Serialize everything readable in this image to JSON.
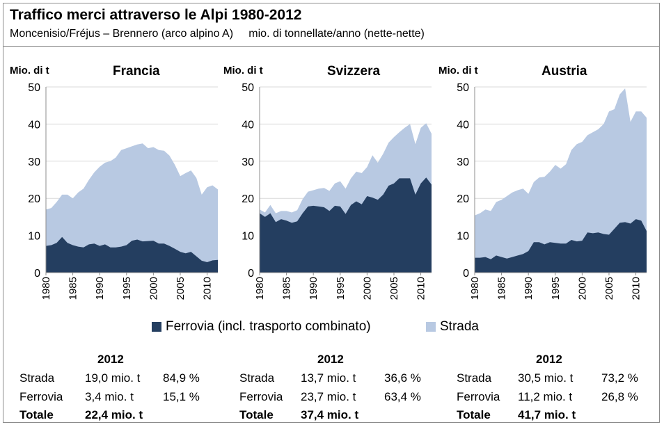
{
  "title": "Traffico merci attraverso le Alpi 1980-2012",
  "subtitle_left": "Moncenisio/Fréjus – Brennero (arco alpino A)",
  "subtitle_right": "mio. di tonnellate/anno (nette-nette)",
  "colors": {
    "ferrovia": "#243e60",
    "strada": "#b8c9e2"
  },
  "legend": {
    "ferrovia": "Ferrovia (incl. trasporto combinato)",
    "strada": "Strada"
  },
  "chart_data": [
    {
      "type": "area",
      "title": "Francia",
      "ylabel": "Mio. di t",
      "ylim": [
        0,
        50
      ],
      "yticks": [
        "0",
        "10",
        "20",
        "30",
        "40",
        "50"
      ],
      "xticks": [
        "1980",
        "1985",
        "1990",
        "1995",
        "2000",
        "2005",
        "2010"
      ],
      "x": [
        1980,
        1981,
        1982,
        1983,
        1984,
        1985,
        1986,
        1987,
        1988,
        1989,
        1990,
        1991,
        1992,
        1993,
        1994,
        1995,
        1996,
        1997,
        1998,
        1999,
        2000,
        2001,
        2002,
        2003,
        2004,
        2005,
        2006,
        2007,
        2008,
        2009,
        2010,
        2011,
        2012
      ],
      "series": [
        {
          "name": "Ferrovia (incl. trasporto combinato)",
          "values": [
            7.2,
            7.4,
            8.0,
            9.6,
            8.0,
            7.4,
            7.0,
            6.8,
            7.6,
            7.8,
            7.2,
            7.6,
            6.8,
            6.8,
            7.0,
            7.4,
            8.6,
            8.9,
            8.4,
            8.5,
            8.6,
            7.8,
            7.8,
            7.2,
            6.4,
            5.6,
            5.2,
            5.6,
            4.4,
            3.2,
            2.8,
            3.3,
            3.4
          ]
        },
        {
          "name": "Strada",
          "values": [
            17.0,
            17.4,
            19.0,
            21.0,
            21.0,
            20.0,
            21.6,
            22.6,
            25.0,
            27.0,
            28.5,
            29.6,
            30.0,
            31.0,
            33.0,
            33.5,
            34.0,
            34.5,
            34.8,
            33.5,
            33.8,
            33.0,
            32.8,
            31.5,
            29.0,
            26.0,
            26.8,
            27.5,
            25.5,
            21.0,
            23.0,
            23.5,
            22.4
          ]
        }
      ]
    },
    {
      "type": "area",
      "title": "Svizzera",
      "ylabel": "Mio. di t",
      "ylim": [
        0,
        50
      ],
      "yticks": [
        "0",
        "10",
        "20",
        "30",
        "40",
        "50"
      ],
      "xticks": [
        "1980",
        "1985",
        "1990",
        "1995",
        "2000",
        "2005",
        "2010"
      ],
      "x": [
        1980,
        1981,
        1982,
        1983,
        1984,
        1985,
        1986,
        1987,
        1988,
        1989,
        1990,
        1991,
        1992,
        1993,
        1994,
        1995,
        1996,
        1997,
        1998,
        1999,
        2000,
        2001,
        2002,
        2003,
        2004,
        2005,
        2006,
        2007,
        2008,
        2009,
        2010,
        2011,
        2012
      ],
      "series": [
        {
          "name": "Ferrovia (incl. trasporto combinato)",
          "values": [
            16.0,
            15.0,
            16.0,
            13.6,
            14.4,
            14.0,
            13.4,
            13.8,
            16.0,
            17.8,
            18.0,
            17.8,
            17.6,
            16.6,
            18.0,
            17.8,
            15.8,
            18.2,
            19.2,
            18.4,
            20.6,
            20.2,
            19.6,
            21.0,
            23.4,
            24.0,
            25.4,
            25.4,
            25.4,
            21.0,
            24.0,
            25.6,
            23.7
          ]
        },
        {
          "name": "Strada",
          "values": [
            17.0,
            16.2,
            18.2,
            16.0,
            16.6,
            16.6,
            16.2,
            16.8,
            19.8,
            21.8,
            22.2,
            22.6,
            22.8,
            22.0,
            24.0,
            24.6,
            22.6,
            25.4,
            27.2,
            26.8,
            28.4,
            31.6,
            29.6,
            32.0,
            35.0,
            36.5,
            37.8,
            39.0,
            40.0,
            34.6,
            39.0,
            40.2,
            37.4
          ]
        }
      ]
    },
    {
      "type": "area",
      "title": "Austria",
      "ylabel": "Mio. di t",
      "ylim": [
        0,
        50
      ],
      "yticks": [
        "0",
        "10",
        "20",
        "30",
        "40",
        "50"
      ],
      "xticks": [
        "1980",
        "1985",
        "1990",
        "1995",
        "2000",
        "2005",
        "2010"
      ],
      "x": [
        1980,
        1981,
        1982,
        1983,
        1984,
        1985,
        1986,
        1987,
        1988,
        1989,
        1990,
        1991,
        1992,
        1993,
        1994,
        1995,
        1996,
        1997,
        1998,
        1999,
        2000,
        2001,
        2002,
        2003,
        2004,
        2005,
        2006,
        2007,
        2008,
        2009,
        2010,
        2011,
        2012
      ],
      "series": [
        {
          "name": "Ferrovia (incl. trasporto combinato)",
          "values": [
            4.0,
            4.0,
            4.2,
            3.6,
            4.6,
            4.2,
            3.8,
            4.2,
            4.6,
            5.0,
            5.8,
            8.2,
            8.2,
            7.6,
            8.2,
            8.0,
            7.8,
            7.8,
            8.8,
            8.4,
            8.6,
            10.8,
            10.6,
            10.8,
            10.4,
            10.2,
            11.8,
            13.4,
            13.6,
            13.2,
            14.4,
            14.0,
            11.2
          ]
        },
        {
          "name": "Strada",
          "values": [
            15.4,
            16.0,
            17.0,
            16.6,
            19.0,
            19.6,
            20.6,
            21.6,
            22.2,
            22.6,
            21.2,
            24.4,
            25.6,
            25.8,
            27.2,
            29.0,
            28.0,
            29.2,
            33.0,
            34.6,
            35.2,
            37.0,
            37.8,
            38.6,
            40.0,
            43.4,
            44.0,
            48.0,
            49.6,
            40.6,
            43.4,
            43.4,
            41.7
          ]
        }
      ]
    }
  ],
  "summary": [
    {
      "year": "2012",
      "strada": {
        "label": "Strada",
        "amount": "19,0 mio. t",
        "pct": "84,9 %"
      },
      "ferrovia": {
        "label": "Ferrovia",
        "amount": "3,4 mio. t",
        "pct": "15,1 %"
      },
      "totale": {
        "label": "Totale",
        "amount": "22,4 mio. t"
      }
    },
    {
      "year": "2012",
      "strada": {
        "label": "Strada",
        "amount": "13,7 mio. t",
        "pct": "36,6 %"
      },
      "ferrovia": {
        "label": "Ferrovia",
        "amount": "23,7 mio. t",
        "pct": "63,4 %"
      },
      "totale": {
        "label": "Totale",
        "amount": "37,4 mio. t"
      }
    },
    {
      "year": "2012",
      "strada": {
        "label": "Strada",
        "amount": "30,5 mio. t",
        "pct": "73,2 %"
      },
      "ferrovia": {
        "label": "Ferrovia",
        "amount": "11,2 mio. t",
        "pct": "26,8 %"
      },
      "totale": {
        "label": "Totale",
        "amount": "41,7 mio. t"
      }
    }
  ]
}
